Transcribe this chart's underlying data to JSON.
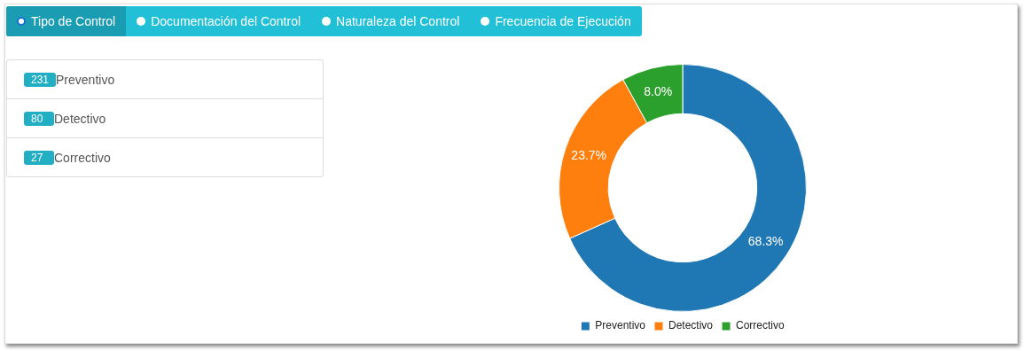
{
  "chart_data": [
    {
      "type": "other",
      "annotations": [
        "Tipo de Control",
        "Documentación del Control",
        "Naturaleza del Control",
        "Frecuencia de Ejecución"
      ]
    },
    {
      "type": "other",
      "annotations": [
        "231",
        "Preventivo",
        "80",
        "Detectivo",
        "27",
        "Correctivo"
      ]
    },
    {
      "type": "donut",
      "categories": [
        "Preventivo",
        "Detectivo",
        "Correctivo"
      ],
      "values": [
        68.3,
        23.7,
        8.0
      ],
      "colors": [
        "#1f77b4",
        "#ff7f0e",
        "#2ca02c"
      ],
      "value_labels": [
        "68.3%",
        "23.7%",
        "8.0%"
      ],
      "legend": "bottom"
    }
  ]
}
